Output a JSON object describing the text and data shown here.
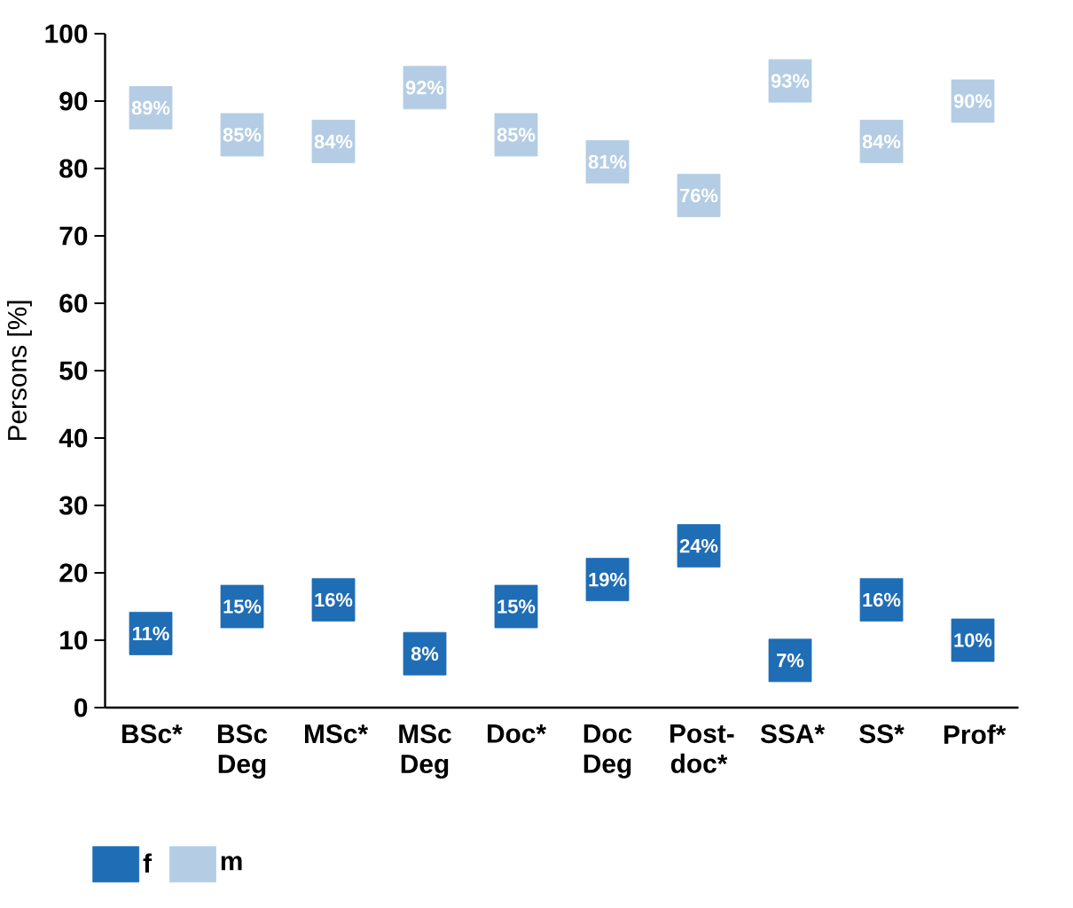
{
  "chart_data": {
    "type": "scatter",
    "ylabel": "Persons [%]",
    "categories": [
      "BSc*",
      "BSc Deg",
      "MSc*",
      "MSc Deg",
      "Doc*",
      "Doc Deg",
      "Post-doc*",
      "SSA*",
      "SS*",
      "Prof*"
    ],
    "series": [
      {
        "name": "f",
        "color": "#1f6db5",
        "values": [
          11,
          15,
          16,
          8,
          15,
          19,
          24,
          7,
          16,
          10
        ],
        "value_labels": [
          "11%",
          "15%",
          "16%",
          "8%",
          "15%",
          "19%",
          "24%",
          "7%",
          "16%",
          "10%"
        ]
      },
      {
        "name": "m",
        "color": "#b4cde4",
        "values": [
          89,
          85,
          84,
          92,
          85,
          81,
          76,
          93,
          84,
          90
        ],
        "value_labels": [
          "89%",
          "85%",
          "84%",
          "92%",
          "85%",
          "81%",
          "76%",
          "93%",
          "84%",
          "90%"
        ]
      }
    ],
    "ylim": [
      0,
      100
    ],
    "yticks": [
      0,
      10,
      20,
      30,
      40,
      50,
      60,
      70,
      80,
      90,
      100
    ],
    "marker": "square",
    "legend": "bottom left",
    "grid": false
  }
}
